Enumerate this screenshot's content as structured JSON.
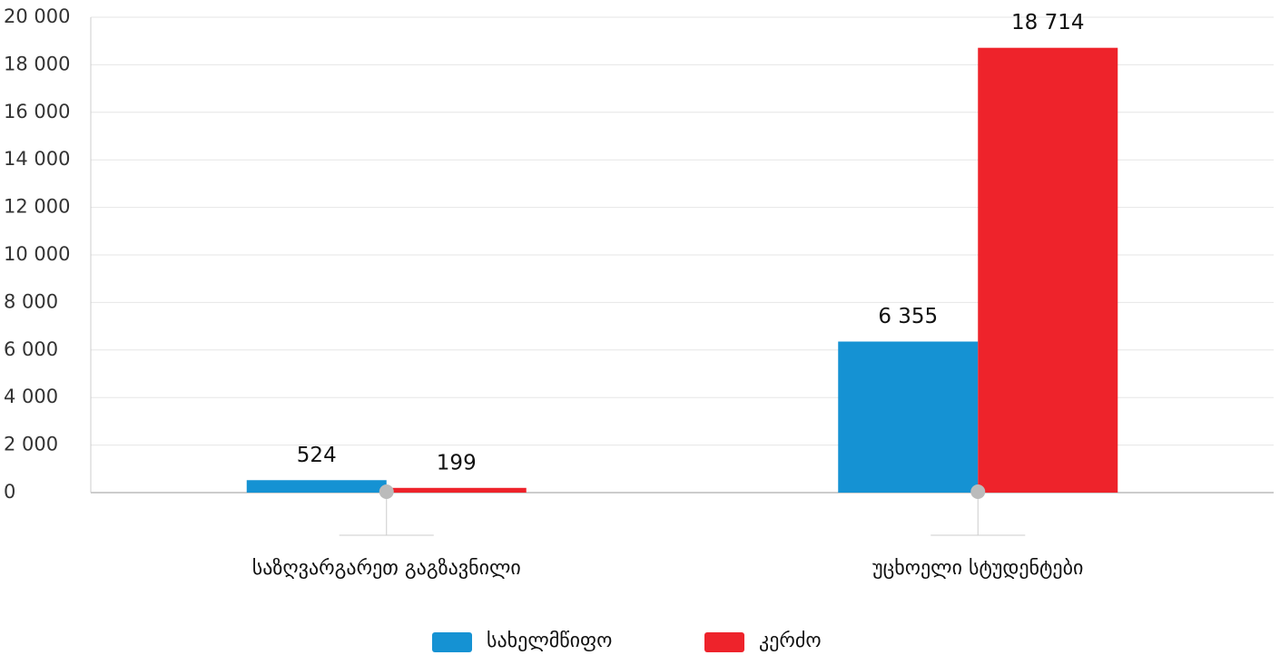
{
  "chart_data": {
    "type": "bar",
    "categories": [
      "საზღვარგარეთ გაგზავნილი",
      "უცხოელი სტუდენტები"
    ],
    "series": [
      {
        "name": "სახელმწიფო",
        "color": "#1592d3",
        "values": [
          524,
          6355
        ],
        "value_labels": [
          "524",
          "6 355"
        ]
      },
      {
        "name": "კერძო",
        "color": "#ee232b",
        "values": [
          199,
          18714
        ],
        "value_labels": [
          "199",
          "18 714"
        ]
      }
    ],
    "ylim": [
      0,
      20000
    ],
    "yticks": [
      0,
      {
        "value": 2000,
        "label": "2 000"
      },
      {
        "value": 4000,
        "label": "4 000"
      },
      {
        "value": 6000,
        "label": "6 000"
      },
      {
        "value": 8000,
        "label": "8 000"
      },
      {
        "value": 10000,
        "label": "10 000"
      },
      {
        "value": 12000,
        "label": "12 000"
      },
      {
        "value": 14000,
        "label": "14 000"
      },
      {
        "value": 16000,
        "label": "16 000"
      },
      {
        "value": 18000,
        "label": "18 000"
      },
      {
        "value": 20000,
        "label": "20 000"
      }
    ],
    "grid": true,
    "legend": "bottom"
  }
}
